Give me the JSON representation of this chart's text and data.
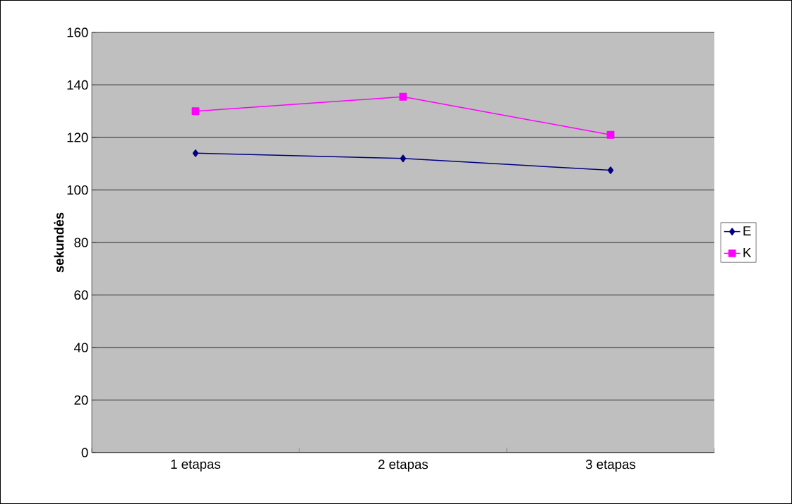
{
  "chart_data": {
    "type": "line",
    "ylabel": "sekundės",
    "categories": [
      "1 etapas",
      "2 etapas",
      "3 etapas"
    ],
    "series": [
      {
        "name": "E",
        "color": "#000080",
        "marker": "diamond",
        "values": [
          114,
          112,
          107.5
        ]
      },
      {
        "name": "K",
        "color": "#ff00ff",
        "marker": "square",
        "values": [
          130,
          135.5,
          121
        ]
      }
    ],
    "ylim": [
      0,
      160
    ],
    "yticks": [
      0,
      20,
      40,
      60,
      80,
      100,
      120,
      140,
      160
    ],
    "grid": "y",
    "legend": "right"
  }
}
